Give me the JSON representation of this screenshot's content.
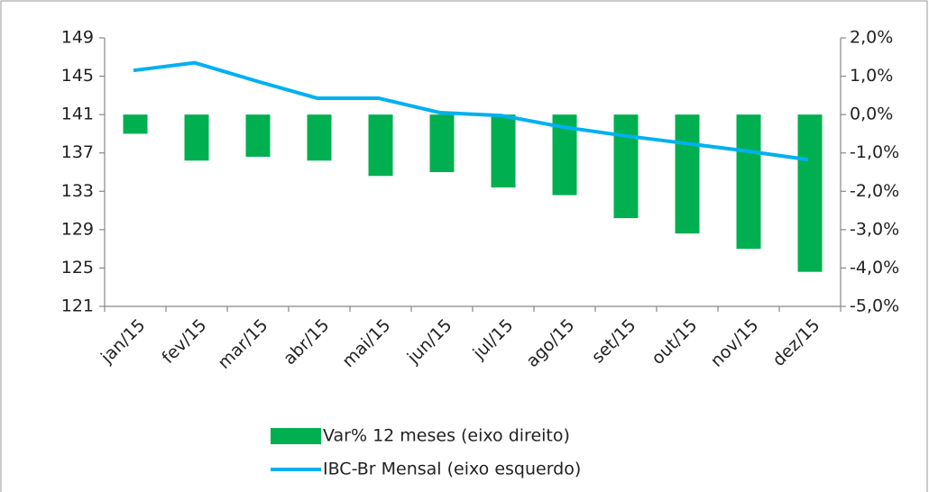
{
  "chart_data": {
    "type": "bar-line",
    "categories": [
      "jan/15",
      "fev/15",
      "mar/15",
      "abr/15",
      "mai/15",
      "jun/15",
      "jul/15",
      "ago/15",
      "set/15",
      "out/15",
      "nov/15",
      "dez/15"
    ],
    "series": [
      {
        "name": "Var% 12 meses (eixo direito)",
        "type": "bar",
        "axis": "y2",
        "color": "#00b050",
        "values": [
          -0.5,
          -1.2,
          -1.1,
          -1.2,
          -1.6,
          -1.5,
          -1.9,
          -2.1,
          -2.7,
          -3.1,
          -3.5,
          -4.1
        ]
      },
      {
        "name": "IBC-Br Mensal (eixo esquerdo)",
        "type": "line",
        "axis": "y",
        "color": "#00b0f0",
        "values": [
          145.6,
          146.4,
          144.5,
          142.7,
          142.7,
          141.2,
          140.9,
          139.7,
          138.8,
          138.0,
          137.2,
          136.3
        ]
      }
    ],
    "ylim": [
      121,
      149
    ],
    "yticks": [
      121,
      125,
      129,
      133,
      137,
      141,
      145,
      149
    ],
    "y2lim": [
      -5,
      2
    ],
    "y2ticks": [
      {
        "value": -5,
        "label": "-5,0%"
      },
      {
        "value": -4,
        "label": "-4,0%"
      },
      {
        "value": -3,
        "label": "-3,0%"
      },
      {
        "value": -2,
        "label": "-2,0%"
      },
      {
        "value": -1,
        "label": "-1,0%"
      },
      {
        "value": 0,
        "label": "0,0%"
      },
      {
        "value": 1,
        "label": "1,0%"
      },
      {
        "value": 2,
        "label": "2,0%"
      }
    ],
    "legend": "bottom"
  }
}
